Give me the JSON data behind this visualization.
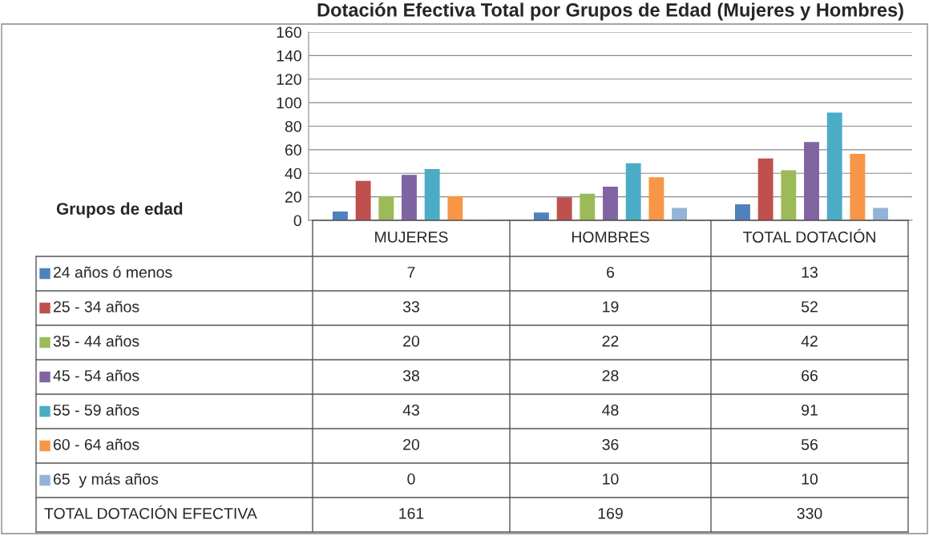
{
  "chart_data": {
    "type": "bar",
    "title": "Dotación Efectiva Total por Grupos de Edad (Mujeres y Hombres)",
    "legend_title": "Grupos de edad",
    "categories": [
      "MUJERES",
      "HOMBRES",
      "TOTAL DOTACIÓN"
    ],
    "series": [
      {
        "name": "24 años ó menos",
        "color": "#4f81bd",
        "values": [
          7,
          6,
          13
        ]
      },
      {
        "name": "25 - 34 años",
        "color": "#c0504d",
        "values": [
          33,
          19,
          52
        ]
      },
      {
        "name": "35 - 44 años",
        "color": "#9bbb59",
        "values": [
          20,
          22,
          42
        ]
      },
      {
        "name": "45 - 54 años",
        "color": "#8064a2",
        "values": [
          38,
          28,
          66
        ]
      },
      {
        "name": "55 - 59 años",
        "color": "#4bacc6",
        "values": [
          43,
          48,
          91
        ]
      },
      {
        "name": "60 - 64 años",
        "color": "#f79646",
        "values": [
          20,
          36,
          56
        ]
      },
      {
        "name": "65  y más años",
        "color": "#95b3d7",
        "values": [
          0,
          10,
          10
        ]
      }
    ],
    "annotations": [
      "TOTAL DOTACIÓN EFECTIVA",
      "161",
      "169",
      "330"
    ],
    "data_labels": true,
    "legend": "bottom",
    "grid": "y",
    "ylim": [
      0,
      160
    ],
    "yticks": [
      0,
      20,
      40,
      60,
      80,
      100,
      120,
      140,
      160
    ]
  }
}
